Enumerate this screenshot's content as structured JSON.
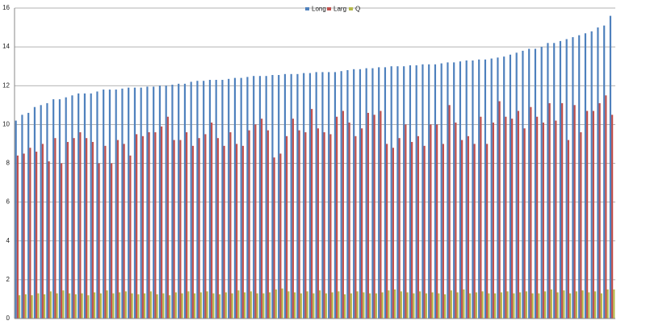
{
  "chart_data": {
    "type": "bar",
    "categories": [
      null,
      null,
      null,
      null,
      null,
      null,
      null,
      null,
      null,
      null,
      null,
      null,
      null,
      null,
      null,
      null,
      null,
      null,
      null,
      null,
      null,
      null,
      null,
      null,
      null,
      null,
      null,
      null,
      null,
      null,
      null,
      null,
      null,
      null,
      null,
      null,
      null,
      null,
      null,
      null,
      null,
      null,
      null,
      null,
      null,
      null,
      null,
      null,
      null,
      null,
      null,
      null,
      null,
      null,
      null,
      null,
      null,
      null,
      null,
      null,
      null,
      null,
      null,
      null,
      null,
      null,
      null,
      null,
      null,
      null,
      null,
      null,
      null,
      null,
      null,
      null,
      null,
      null,
      null,
      null,
      null,
      null,
      null,
      null,
      null,
      null,
      null,
      null,
      null,
      null,
      null,
      null,
      null,
      null,
      null,
      null
    ],
    "series": [
      {
        "name": "Long",
        "color": "#4f81bd",
        "values": [
          10.2,
          10.5,
          10.6,
          10.9,
          11.0,
          11.1,
          11.3,
          11.3,
          11.4,
          11.5,
          11.6,
          11.6,
          11.6,
          11.7,
          11.8,
          11.8,
          11.8,
          11.85,
          11.9,
          11.9,
          11.9,
          11.95,
          11.95,
          12.0,
          12.0,
          12.05,
          12.1,
          12.1,
          12.2,
          12.25,
          12.25,
          12.3,
          12.3,
          12.3,
          12.35,
          12.4,
          12.4,
          12.45,
          12.5,
          12.5,
          12.5,
          12.55,
          12.55,
          12.6,
          12.6,
          12.6,
          12.65,
          12.65,
          12.7,
          12.7,
          12.7,
          12.7,
          12.75,
          12.8,
          12.85,
          12.85,
          12.9,
          12.9,
          12.95,
          12.95,
          13.0,
          13.0,
          13.0,
          13.05,
          13.05,
          13.1,
          13.1,
          13.1,
          13.15,
          13.2,
          13.2,
          13.25,
          13.3,
          13.3,
          13.35,
          13.35,
          13.4,
          13.45,
          13.5,
          13.6,
          13.7,
          13.8,
          13.9,
          13.9,
          14.0,
          14.2,
          14.2,
          14.3,
          14.4,
          14.5,
          14.6,
          14.7,
          14.8,
          15.0,
          15.1,
          15.6
        ]
      },
      {
        "name": "Larg",
        "color": "#c0504d",
        "values": [
          8.4,
          8.5,
          8.8,
          8.6,
          9.0,
          8.1,
          9.3,
          8.0,
          9.1,
          9.3,
          9.6,
          9.3,
          9.1,
          8.0,
          8.9,
          8.0,
          9.2,
          9.0,
          8.4,
          9.5,
          9.4,
          9.6,
          9.6,
          9.9,
          10.4,
          9.2,
          9.2,
          9.6,
          8.9,
          9.3,
          9.5,
          10.1,
          9.3,
          8.9,
          9.6,
          9.0,
          8.9,
          9.7,
          10.0,
          10.3,
          9.7,
          8.3,
          8.5,
          9.4,
          10.3,
          9.7,
          9.6,
          10.8,
          9.8,
          9.6,
          9.5,
          10.4,
          10.7,
          10.1,
          9.4,
          9.8,
          10.6,
          10.5,
          10.7,
          9.0,
          8.8,
          9.3,
          10.0,
          9.1,
          9.4,
          8.9,
          10.0,
          10.0,
          9.0,
          11.0,
          10.1,
          9.2,
          9.4,
          9.0,
          10.4,
          9.0,
          10.1,
          11.2,
          10.4,
          10.3,
          10.7,
          9.8,
          10.9,
          10.4,
          10.1,
          11.1,
          10.2,
          11.1,
          9.2,
          11.0,
          9.6,
          10.7,
          10.7,
          11.1,
          11.5,
          10.5
        ]
      },
      {
        "name": "Q",
        "color": "#b5b94a",
        "values": [
          1.2,
          1.25,
          1.2,
          1.3,
          1.25,
          1.4,
          1.3,
          1.45,
          1.3,
          1.25,
          1.3,
          1.2,
          1.35,
          1.3,
          1.45,
          1.3,
          1.35,
          1.4,
          1.3,
          1.25,
          1.3,
          1.4,
          1.25,
          1.3,
          1.2,
          1.35,
          1.3,
          1.4,
          1.3,
          1.35,
          1.4,
          1.3,
          1.25,
          1.35,
          1.3,
          1.45,
          1.35,
          1.4,
          1.3,
          1.3,
          1.35,
          1.5,
          1.55,
          1.4,
          1.35,
          1.3,
          1.4,
          1.3,
          1.45,
          1.3,
          1.35,
          1.4,
          1.25,
          1.3,
          1.4,
          1.35,
          1.3,
          1.3,
          1.35,
          1.45,
          1.5,
          1.4,
          1.35,
          1.3,
          1.4,
          1.3,
          1.35,
          1.3,
          1.25,
          1.45,
          1.35,
          1.5,
          1.3,
          1.35,
          1.4,
          1.3,
          1.3,
          1.35,
          1.4,
          1.3,
          1.35,
          1.4,
          1.3,
          1.3,
          1.4,
          1.5,
          1.35,
          1.45,
          1.3,
          1.4,
          1.45,
          1.35,
          1.4,
          1.3,
          1.5,
          1.5
        ]
      }
    ],
    "ylim": [
      0,
      16
    ],
    "yticks": [
      0,
      2,
      4,
      6,
      8,
      10,
      12,
      14,
      16
    ],
    "grid": true,
    "legend": "top"
  }
}
